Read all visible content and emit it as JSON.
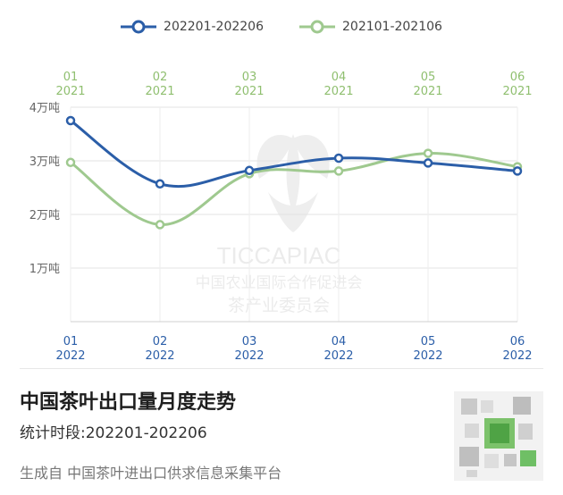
{
  "chart_data": {
    "type": "line",
    "categories": [
      "01",
      "02",
      "03",
      "04",
      "05",
      "06"
    ],
    "x_secondary": [
      {
        "month": "01",
        "year": "2021"
      },
      {
        "month": "02",
        "year": "2021"
      },
      {
        "month": "03",
        "year": "2021"
      },
      {
        "month": "04",
        "year": "2021"
      },
      {
        "month": "05",
        "year": "2021"
      },
      {
        "month": "06",
        "year": "2021"
      }
    ],
    "x_primary": [
      {
        "month": "01",
        "year": "2022"
      },
      {
        "month": "02",
        "year": "2022"
      },
      {
        "month": "03",
        "year": "2022"
      },
      {
        "month": "04",
        "year": "2022"
      },
      {
        "month": "05",
        "year": "2022"
      },
      {
        "month": "06",
        "year": "2022"
      }
    ],
    "series": [
      {
        "name": "202201-202206",
        "values": [
          3.75,
          2.57,
          2.82,
          3.05,
          2.96,
          2.81
        ],
        "color": "#2b5ea8"
      },
      {
        "name": "202101-202106",
        "values": [
          2.97,
          1.81,
          2.76,
          2.81,
          3.14,
          2.89
        ],
        "color": "#9fc98f"
      }
    ],
    "y_ticks": [
      "1万吨",
      "2万吨",
      "3万吨",
      "4万吨"
    ],
    "y_tick_values": [
      1,
      2,
      3,
      4
    ],
    "ylim": [
      0,
      4
    ],
    "grid": true,
    "legend_position": "top-center"
  },
  "watermark": {
    "brand": "TICCAPIAC",
    "line1": "中国农业国际合作促进会",
    "line2": "茶产业委员会"
  },
  "footer": {
    "title": "中国茶叶出口量月度走势",
    "period": "统计时段:202201-202206",
    "source": "生成自 中国茶叶进出口供求信息采集平台"
  }
}
